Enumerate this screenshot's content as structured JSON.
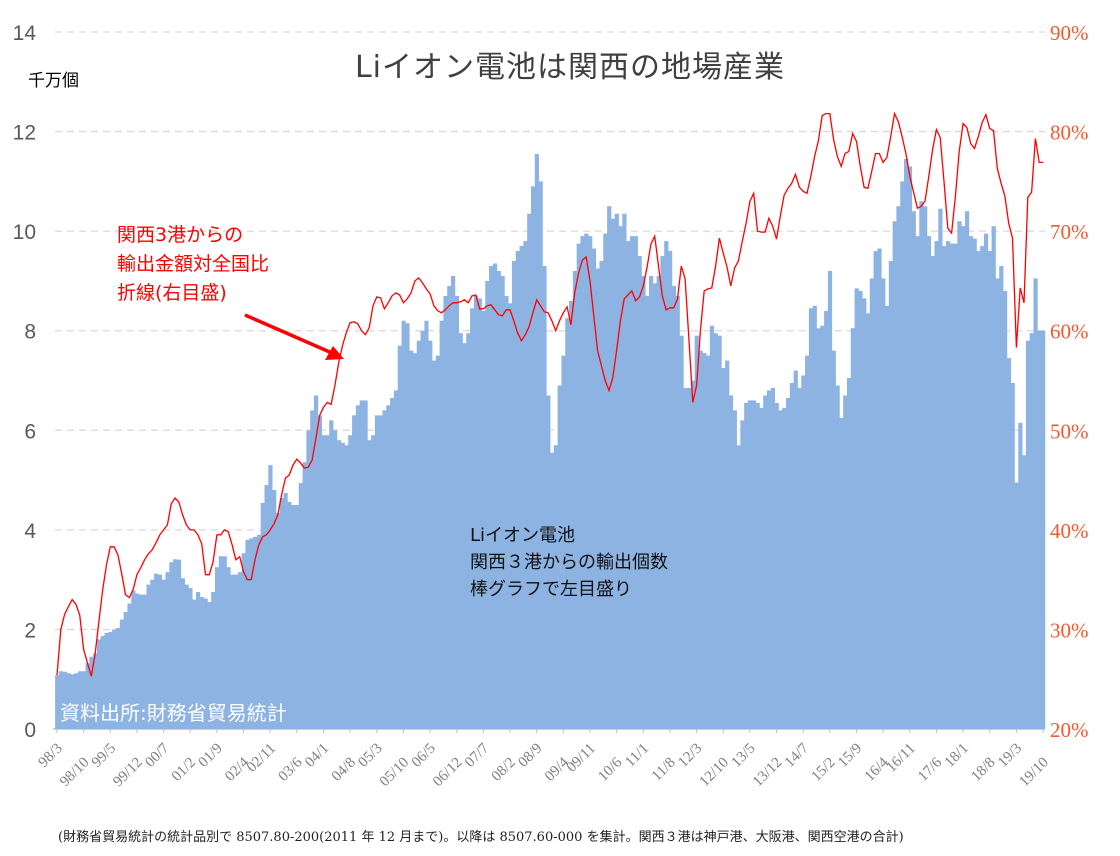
{
  "chart_data": {
    "type": "bar+line",
    "title": "Liイオン電池は関西の地場産業",
    "y_left_label": "千万個",
    "y_left_ticks": [
      "0",
      "2",
      "4",
      "6",
      "8",
      "10",
      "12",
      "14"
    ],
    "y_left_range": [
      0,
      14
    ],
    "y_right_ticks": [
      "20%",
      "30%",
      "40%",
      "50%",
      "60%",
      "70%",
      "80%",
      "90%"
    ],
    "y_right_range": [
      20,
      90
    ],
    "x_start": "98/3",
    "x_tick_every_months": 7,
    "x_tick_labels": [
      "98/3",
      "98/10",
      "99/5",
      "99/12",
      "00/7",
      "01/2",
      "01/9",
      "02/4",
      "02/11",
      "03/6",
      "04/1",
      "04/8",
      "05/3",
      "05/10",
      "06/5",
      "06/12",
      "07/7",
      "08/2",
      "08/9",
      "09/4",
      "09/11",
      "10/6",
      "11/1",
      "11/8",
      "12/3",
      "12/10",
      "13/5",
      "13/12",
      "14/7",
      "15/2",
      "15/9",
      "16/4",
      "16/11",
      "17/6",
      "18/1",
      "18/8",
      "19/3",
      "19/10"
    ],
    "grid": true,
    "series": [
      {
        "name": "関西3港からの輸出個数 (千万個, 左目盛)",
        "type": "bar",
        "axis": "left",
        "color": "#8db3e2",
        "values": [
          1.08,
          1.16,
          1.15,
          1.12,
          1.1,
          1.12,
          1.16,
          1.16,
          1.32,
          1.45,
          1.52,
          1.8,
          1.87,
          1.93,
          1.95,
          2.0,
          2.03,
          2.2,
          2.35,
          2.52,
          2.78,
          2.72,
          2.7,
          2.7,
          2.9,
          3.0,
          3.12,
          3.1,
          3.0,
          3.15,
          3.35,
          3.41,
          3.4,
          3.03,
          2.9,
          2.83,
          2.6,
          2.75,
          2.65,
          2.62,
          2.55,
          2.75,
          3.25,
          3.47,
          3.47,
          3.25,
          3.1,
          3.1,
          3.15,
          3.53,
          3.8,
          3.83,
          3.86,
          3.9,
          4.54,
          4.9,
          5.3,
          4.8,
          4.34,
          4.64,
          4.74,
          4.56,
          4.5,
          4.5,
          4.94,
          5.36,
          6.0,
          6.4,
          6.7,
          6.3,
          5.9,
          5.9,
          6.2,
          6.0,
          5.8,
          5.75,
          5.7,
          5.9,
          6.3,
          6.5,
          6.6,
          6.6,
          5.8,
          5.9,
          6.3,
          6.3,
          6.4,
          6.5,
          6.65,
          6.8,
          7.7,
          8.2,
          8.15,
          7.6,
          7.55,
          7.8,
          8.0,
          8.2,
          7.8,
          7.4,
          7.5,
          8.2,
          8.7,
          8.9,
          9.1,
          8.7,
          7.95,
          7.75,
          7.95,
          8.45,
          8.7,
          8.65,
          8.4,
          9.0,
          9.3,
          9.35,
          9.2,
          9.1,
          8.7,
          8.55,
          9.4,
          9.6,
          9.7,
          9.8,
          10.35,
          10.9,
          11.55,
          11.0,
          9.3,
          6.7,
          5.55,
          5.7,
          6.9,
          7.5,
          8.25,
          8.6,
          9.2,
          9.75,
          9.9,
          9.95,
          9.9,
          9.65,
          9.25,
          9.4,
          9.95,
          10.5,
          10.25,
          10.35,
          10.1,
          10.35,
          9.8,
          9.9,
          9.9,
          9.5,
          9.1,
          8.7,
          9.1,
          8.95,
          9.1,
          9.5,
          9.8,
          9.6,
          8.9,
          8.7,
          7.9,
          6.85,
          6.85,
          7.0,
          7.9,
          7.6,
          7.55,
          7.5,
          8.1,
          7.95,
          7.9,
          7.25,
          7.4,
          6.7,
          6.4,
          5.7,
          6.2,
          6.55,
          6.6,
          6.6,
          6.55,
          6.45,
          6.7,
          6.8,
          6.85,
          6.55,
          6.4,
          6.45,
          6.65,
          6.95,
          7.2,
          6.85,
          7.1,
          7.5,
          8.45,
          8.5,
          8.05,
          8.1,
          8.4,
          9.2,
          7.6,
          6.9,
          6.25,
          6.7,
          7.05,
          8.05,
          8.85,
          8.8,
          8.65,
          8.35,
          9.05,
          9.6,
          9.65,
          9.05,
          8.5,
          9.4,
          10.2,
          10.5,
          11.0,
          11.45,
          11.3,
          10.4,
          9.9,
          10.6,
          10.5,
          9.9,
          9.5,
          9.8,
          10.45,
          9.7,
          9.8,
          9.75,
          9.75,
          10.2,
          10.1,
          10.4,
          9.9,
          9.85,
          9.6,
          9.7,
          9.95,
          9.6,
          10.1,
          9.05,
          9.3,
          8.8,
          7.45,
          6.95,
          4.95,
          6.15,
          5.5,
          7.8,
          7.95,
          9.05,
          8.0,
          8.0
        ]
      },
      {
        "name": "関西3港からの輸出金額対全国比 (%, 右目盛)",
        "type": "line",
        "axis": "right",
        "color": "#ff0000",
        "values": [
          25.4,
          30,
          31.5,
          32.3,
          33,
          32.5,
          31.4,
          28,
          26.6,
          25.3,
          27.5,
          30.8,
          34,
          36.5,
          38.3,
          38.3,
          37.5,
          35.6,
          33.5,
          33.2,
          34,
          35.5,
          36.2,
          37,
          37.6,
          38,
          38.7,
          39.5,
          40,
          40.5,
          42.6,
          43.2,
          42.8,
          41.5,
          40.5,
          40,
          40,
          39.5,
          38.6,
          35.5,
          35.5,
          36.8,
          39.5,
          39.5,
          40,
          39.8,
          38.5,
          37,
          37.3,
          35.8,
          35,
          35,
          37,
          38.5,
          39.3,
          39.5,
          40,
          40.6,
          41.5,
          43.5,
          45.2,
          45.5,
          46.5,
          47.1,
          46.7,
          46.2,
          46.3,
          47,
          49.2,
          51.5,
          52.3,
          52.8,
          52.6,
          54.5,
          56.8,
          58.5,
          59.8,
          60.8,
          60.9,
          60.7,
          60,
          59.6,
          60.3,
          62.5,
          63.4,
          63.3,
          62.2,
          62.8,
          63.5,
          63.8,
          63.6,
          62.8,
          63.2,
          63.8,
          65,
          65.3,
          64.8,
          64.2,
          63.7,
          62.5,
          62,
          61.8,
          62.1,
          62.5,
          62.8,
          62.8,
          62.9,
          63.1,
          62.8,
          63.5,
          63.6,
          62.2,
          62.2,
          62.5,
          62.6,
          62.1,
          61.6,
          61.5,
          62.1,
          62.1,
          61,
          59.8,
          59,
          59.6,
          60.4,
          61.8,
          63.1,
          62.5,
          61.9,
          61.8,
          61,
          60,
          61,
          61.8,
          62.4,
          60.6,
          63.8,
          65.8,
          67.1,
          67.4,
          65,
          61.5,
          58,
          56.5,
          55,
          54,
          55.3,
          58,
          61,
          63.2,
          63.6,
          64,
          63,
          63.4,
          64.5,
          66.4,
          68.7,
          69.5,
          66.5,
          63.5,
          62.1,
          62.3,
          62.3,
          63.2,
          66.5,
          65.2,
          59,
          52.8,
          54.5,
          60,
          64,
          64.2,
          64.3,
          66.5,
          69.3,
          67.8,
          66.4,
          64.5,
          66.3,
          67,
          69,
          70.8,
          73,
          73.8,
          70,
          69.9,
          69.9,
          71.3,
          70.5,
          69.2,
          71.5,
          73.6,
          74.3,
          74.8,
          75.7,
          74.4,
          74,
          73.8,
          75.5,
          77.5,
          79.1,
          81.6,
          81.8,
          81.8,
          79.2,
          77.5,
          76.5,
          77.8,
          78,
          79.8,
          79,
          76.5,
          74.4,
          74.3,
          76,
          77.8,
          77.8,
          76.9,
          77.4,
          79.5,
          81.8,
          81,
          79.5,
          77.8,
          75.5,
          73.9,
          72.3,
          72.5,
          73,
          75.5,
          78.2,
          80.2,
          79.4,
          75,
          70.3,
          69.8,
          73.5,
          78,
          80.8,
          80.4,
          78.8,
          78.3,
          79.5,
          80.9,
          81.7,
          80.3,
          80.1,
          76.3,
          74.8,
          73.5,
          70.8,
          69.3,
          58.3,
          64.3,
          62.8,
          73.4,
          73.9,
          79.3,
          76.9,
          76.9
        ]
      }
    ],
    "annotations": {
      "line_note": [
        "関西3港からの",
        "輸出金額対全国比",
        "折線(右目盛)"
      ],
      "bar_note": [
        "Liイオン電池",
        "関西３港からの輸出個数",
        "棒グラフで左目盛り"
      ],
      "source": "資料出所:財務省貿易統計",
      "footer": "(財務省貿易統計の統計品別で 8507.80-200(2011 年 12 月まで)。以降は 8507.60-000 を集計。関西３港は神戸港、大阪港、関西空港の合計)"
    },
    "colors": {
      "left_axis": "#595959",
      "right_axis": "#f4582e",
      "grid": "#d9d9d9",
      "arrow": "#ff0000"
    }
  }
}
